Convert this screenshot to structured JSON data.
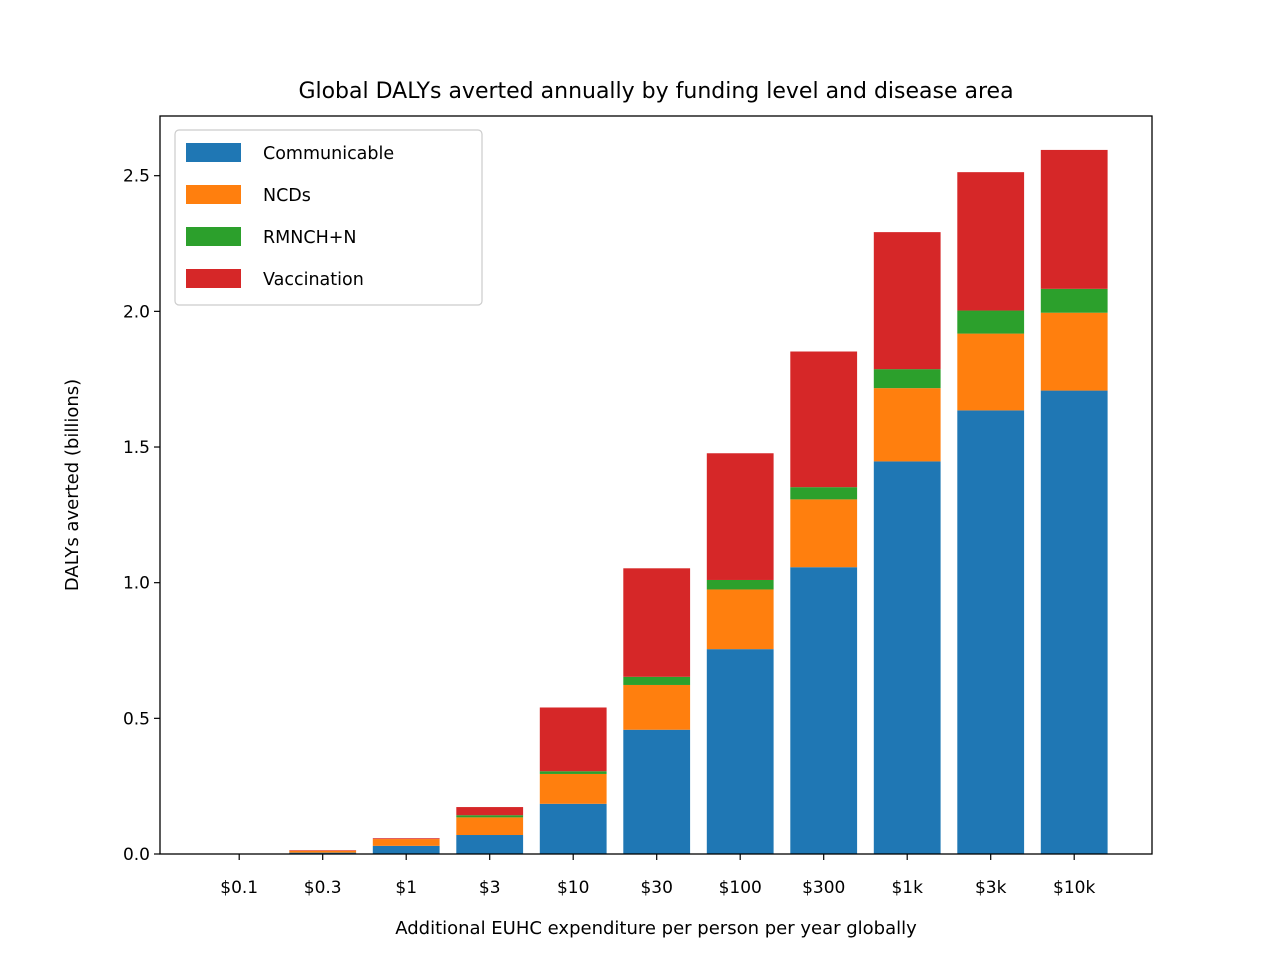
{
  "chart_data": {
    "type": "bar",
    "stacked": true,
    "title": "Global DALYs averted annually by funding level and disease area",
    "xlabel": "Additional EUHC expenditure per person per year globally",
    "ylabel": "DALYs averted (billions)",
    "categories": [
      "$0.1",
      "$0.3",
      "$1",
      "$3",
      "$10",
      "$30",
      "$100",
      "$300",
      "$1k",
      "$3k",
      "$10k"
    ],
    "ylim": [
      0,
      2.72
    ],
    "yticks": [
      0.0,
      0.5,
      1.0,
      1.5,
      2.0,
      2.5
    ],
    "ytick_labels": [
      "0.0",
      "0.5",
      "1.0",
      "1.5",
      "2.0",
      "2.5"
    ],
    "grid": false,
    "legend_position": "top-left",
    "series": [
      {
        "name": "Communicable",
        "color": "#1f77b4",
        "values": [
          0.0,
          0.005,
          0.03,
          0.07,
          0.185,
          0.458,
          0.755,
          1.057,
          1.447,
          1.635,
          1.708
        ]
      },
      {
        "name": "NCDs",
        "color": "#ff7f0e",
        "values": [
          0.0,
          0.007,
          0.025,
          0.065,
          0.11,
          0.165,
          0.22,
          0.25,
          0.27,
          0.283,
          0.287
        ]
      },
      {
        "name": "RMNCH+N",
        "color": "#2ca02c",
        "values": [
          0.0,
          0.0,
          0.0,
          0.008,
          0.01,
          0.03,
          0.035,
          0.045,
          0.07,
          0.085,
          0.088
        ]
      },
      {
        "name": "Vaccination",
        "color": "#d62728",
        "values": [
          0.0,
          0.002,
          0.003,
          0.03,
          0.235,
          0.4,
          0.467,
          0.5,
          0.505,
          0.51,
          0.512
        ]
      }
    ]
  }
}
